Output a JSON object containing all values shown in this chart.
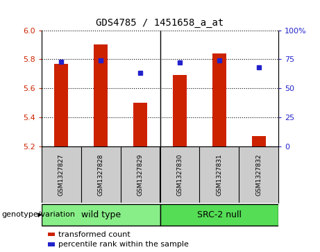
{
  "title": "GDS4785 / 1451658_a_at",
  "samples": [
    "GSM1327827",
    "GSM1327828",
    "GSM1327829",
    "GSM1327830",
    "GSM1327831",
    "GSM1327832"
  ],
  "transformed_counts": [
    5.77,
    5.9,
    5.5,
    5.69,
    5.84,
    5.27
  ],
  "percentile_ranks": [
    73,
    74,
    63,
    72,
    74,
    68
  ],
  "ylim_left": [
    5.2,
    6.0
  ],
  "ylim_right": [
    0,
    100
  ],
  "yticks_left": [
    5.2,
    5.4,
    5.6,
    5.8,
    6.0
  ],
  "yticks_right": [
    0,
    25,
    50,
    75,
    100
  ],
  "bar_color": "#CC2200",
  "dot_color": "#2222CC",
  "groups": [
    {
      "label": "wild type",
      "indices": [
        0,
        1,
        2
      ],
      "color": "#88EE88"
    },
    {
      "label": "SRC-2 null",
      "indices": [
        3,
        4,
        5
      ],
      "color": "#55DD55"
    }
  ],
  "group_label": "genotype/variation",
  "legend_items": [
    {
      "label": "transformed count",
      "color": "#CC2200"
    },
    {
      "label": "percentile rank within the sample",
      "color": "#2222CC"
    }
  ],
  "bar_bottom": 5.2,
  "background_color": "#FFFFFF",
  "plot_bg_color": "#FFFFFF",
  "tick_label_color_left": "#CC2200",
  "tick_label_color_right": "#2222CC",
  "grid_color": "#000000",
  "sample_bg_color": "#CCCCCC",
  "bar_width": 0.35
}
